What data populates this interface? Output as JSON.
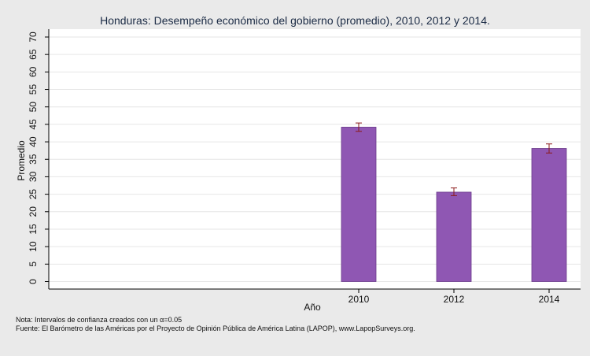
{
  "chart_data": {
    "type": "bar",
    "title": "Honduras: Desempeño económico del gobierno (promedio), 2010, 2012 y 2014.",
    "xlabel": "Año",
    "ylabel": "Promedio",
    "categories": [
      "2010",
      "2012",
      "2014"
    ],
    "values": [
      44.2,
      25.6,
      38.1
    ],
    "ci_low": [
      43.0,
      24.6,
      36.8
    ],
    "ci_high": [
      45.4,
      26.8,
      39.4
    ],
    "ylim": [
      0,
      70
    ],
    "yticks": [
      0,
      5,
      10,
      15,
      20,
      25,
      30,
      35,
      40,
      45,
      50,
      55,
      60,
      65,
      70
    ],
    "grid": true,
    "bar_color": "#8f57b3",
    "bar_edge_color": "#6a3a8a",
    "error_bar_color": "#8b1a1a"
  },
  "notes": {
    "line1": "Nota: Intervalos de confianza creados con un α=0.05",
    "line2": "Fuente: El Barómetro de las Américas por el Proyecto de Opinión Pública de América Latina (LAPOP), www.LapopSurveys.org."
  }
}
